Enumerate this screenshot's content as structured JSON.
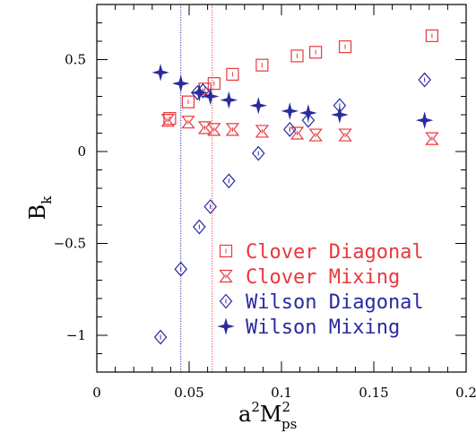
{
  "chart_data": {
    "type": "scatter",
    "xlim": [
      0,
      0.2
    ],
    "ylim": [
      -1.2,
      0.8
    ],
    "x_ticks": [
      0,
      0.05,
      0.1,
      0.15,
      0.2
    ],
    "x_tick_labels": [
      "0",
      "0.05",
      "0.1",
      "0.15",
      "0.2"
    ],
    "y_ticks": [
      -1,
      -0.5,
      0,
      0.5
    ],
    "y_tick_labels": [
      "−1",
      "−0.5",
      "0",
      "0.5"
    ],
    "xlabel": {
      "base": "a",
      "sup1": "2",
      "mid": "M",
      "sup2": "2",
      "sub": "ps"
    },
    "ylabel": {
      "base": "B",
      "sub": "k"
    },
    "vlines": [
      {
        "x": 0.0455,
        "color": "#2a2aa0"
      },
      {
        "x": 0.0625,
        "color": "#e8383d"
      }
    ],
    "legend_position": "bottom-right",
    "series": [
      {
        "name": "Clover Diagonal",
        "marker": "square",
        "color": "#e8383d",
        "points": [
          [
            0.0395,
            0.18
          ],
          [
            0.0495,
            0.27
          ],
          [
            0.0585,
            0.34
          ],
          [
            0.0635,
            0.37
          ],
          [
            0.0735,
            0.42
          ],
          [
            0.0895,
            0.47
          ],
          [
            0.1085,
            0.52
          ],
          [
            0.1185,
            0.54
          ],
          [
            0.1345,
            0.57
          ],
          [
            0.1815,
            0.63
          ]
        ]
      },
      {
        "name": "Clover Mixing",
        "marker": "hourglass",
        "color": "#e8383d",
        "points": [
          [
            0.0385,
            0.17
          ],
          [
            0.0495,
            0.16
          ],
          [
            0.0585,
            0.13
          ],
          [
            0.0635,
            0.12
          ],
          [
            0.0735,
            0.12
          ],
          [
            0.0895,
            0.11
          ],
          [
            0.1085,
            0.1
          ],
          [
            0.1185,
            0.09
          ],
          [
            0.1345,
            0.09
          ],
          [
            0.1815,
            0.07
          ]
        ]
      },
      {
        "name": "Wilson Diagonal",
        "marker": "diamond",
        "color": "#2a2aa0",
        "points": [
          [
            0.0345,
            -1.01
          ],
          [
            0.0455,
            -0.64
          ],
          [
            0.0555,
            -0.41
          ],
          [
            0.0615,
            -0.3
          ],
          [
            0.0715,
            -0.16
          ],
          [
            0.0875,
            -0.01
          ],
          [
            0.1045,
            0.12
          ],
          [
            0.1145,
            0.17
          ],
          [
            0.1315,
            0.25
          ],
          [
            0.1775,
            0.39
          ],
          [
            0.0575,
            0.33
          ],
          [
            0.0545,
            0.32
          ]
        ]
      },
      {
        "name": "Wilson Mixing",
        "marker": "star",
        "color": "#2a2aa0",
        "points": [
          [
            0.0345,
            0.43
          ],
          [
            0.0455,
            0.37
          ],
          [
            0.0555,
            0.32
          ],
          [
            0.0615,
            0.3
          ],
          [
            0.0715,
            0.28
          ],
          [
            0.0875,
            0.25
          ],
          [
            0.1045,
            0.22
          ],
          [
            0.1145,
            0.21
          ],
          [
            0.1315,
            0.2
          ],
          [
            0.1775,
            0.17
          ]
        ]
      }
    ]
  }
}
